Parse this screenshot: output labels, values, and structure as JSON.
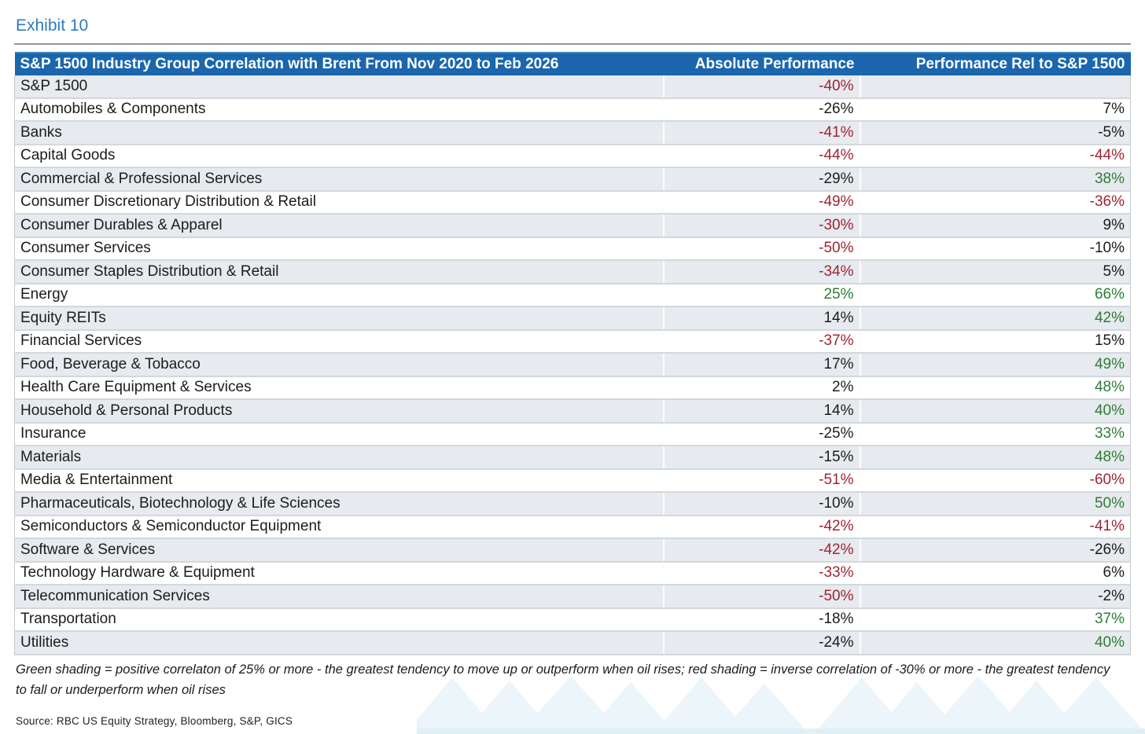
{
  "exhibit_label": "Exhibit 10",
  "table": {
    "header": {
      "title": "S&P 1500 Industry Group Correlation with Brent From Nov 2020 to Feb 2026",
      "col_absolute": "Absolute Performance",
      "col_relative": "Performance Rel to S&P 1500"
    },
    "rows": [
      {
        "name": "S&P 1500",
        "abs": "-40%",
        "abs_shade": "red",
        "rel": "",
        "rel_shade": "none"
      },
      {
        "name": "Automobiles & Components",
        "abs": "-26%",
        "abs_shade": "none",
        "rel": "7%",
        "rel_shade": "none"
      },
      {
        "name": "Banks",
        "abs": "-41%",
        "abs_shade": "red",
        "rel": "-5%",
        "rel_shade": "none"
      },
      {
        "name": "Capital Goods",
        "abs": "-44%",
        "abs_shade": "red",
        "rel": "-44%",
        "rel_shade": "red"
      },
      {
        "name": "Commercial & Professional Services",
        "abs": "-29%",
        "abs_shade": "none",
        "rel": "38%",
        "rel_shade": "green"
      },
      {
        "name": "Consumer Discretionary Distribution & Retail",
        "abs": "-49%",
        "abs_shade": "red",
        "rel": "-36%",
        "rel_shade": "red"
      },
      {
        "name": "Consumer Durables & Apparel",
        "abs": "-30%",
        "abs_shade": "red",
        "rel": "9%",
        "rel_shade": "none"
      },
      {
        "name": "Consumer Services",
        "abs": "-50%",
        "abs_shade": "red",
        "rel": "-10%",
        "rel_shade": "none"
      },
      {
        "name": "Consumer Staples Distribution & Retail",
        "abs": "-34%",
        "abs_shade": "red",
        "rel": "5%",
        "rel_shade": "none"
      },
      {
        "name": "Energy",
        "abs": "25%",
        "abs_shade": "green",
        "rel": "66%",
        "rel_shade": "green"
      },
      {
        "name": "Equity REITs",
        "abs": "14%",
        "abs_shade": "none",
        "rel": "42%",
        "rel_shade": "green"
      },
      {
        "name": "Financial Services",
        "abs": "-37%",
        "abs_shade": "red",
        "rel": "15%",
        "rel_shade": "none"
      },
      {
        "name": "Food, Beverage & Tobacco",
        "abs": "17%",
        "abs_shade": "none",
        "rel": "49%",
        "rel_shade": "green"
      },
      {
        "name": "Health Care Equipment & Services",
        "abs": "2%",
        "abs_shade": "none",
        "rel": "48%",
        "rel_shade": "green"
      },
      {
        "name": "Household & Personal Products",
        "abs": "14%",
        "abs_shade": "none",
        "rel": "40%",
        "rel_shade": "green"
      },
      {
        "name": "Insurance",
        "abs": "-25%",
        "abs_shade": "none",
        "rel": "33%",
        "rel_shade": "green"
      },
      {
        "name": "Materials",
        "abs": "-15%",
        "abs_shade": "none",
        "rel": "48%",
        "rel_shade": "green"
      },
      {
        "name": "Media & Entertainment",
        "abs": "-51%",
        "abs_shade": "red",
        "rel": "-60%",
        "rel_shade": "red"
      },
      {
        "name": "Pharmaceuticals, Biotechnology & Life Sciences",
        "abs": "-10%",
        "abs_shade": "none",
        "rel": "50%",
        "rel_shade": "green"
      },
      {
        "name": "Semiconductors & Semiconductor Equipment",
        "abs": "-42%",
        "abs_shade": "red",
        "rel": "-41%",
        "rel_shade": "red"
      },
      {
        "name": "Software & Services",
        "abs": "-42%",
        "abs_shade": "red",
        "rel": "-26%",
        "rel_shade": "none"
      },
      {
        "name": "Technology Hardware & Equipment",
        "abs": "-33%",
        "abs_shade": "red",
        "rel": "6%",
        "rel_shade": "none"
      },
      {
        "name": "Telecommunication Services",
        "abs": "-50%",
        "abs_shade": "red",
        "rel": "-2%",
        "rel_shade": "none"
      },
      {
        "name": "Transportation",
        "abs": "-18%",
        "abs_shade": "none",
        "rel": "37%",
        "rel_shade": "green"
      },
      {
        "name": "Utilities",
        "abs": "-24%",
        "abs_shade": "none",
        "rel": "40%",
        "rel_shade": "green"
      }
    ]
  },
  "footnote": "Green shading = positive correlaton of 25% or more - the greatest tendency to move up or outperform when oil rises; red shading = inverse correlation of -30% or more - the greatest tendency to fall or underperform when oil rises",
  "source": "Source: RBC US Equity Strategy, Bloomberg, S&P, GICS",
  "colors": {
    "header_bg": "#1b66ad",
    "exhibit_blue": "#2e7bbf",
    "red_cell_bg": "#f9c4cb",
    "red_cell_text": "#9e2433",
    "green_cell_bg": "#c9edc9",
    "green_cell_text": "#2e7d36",
    "stripe_row_bg": "#e7eaee",
    "watermark_blue": "#ecf5f9"
  }
}
